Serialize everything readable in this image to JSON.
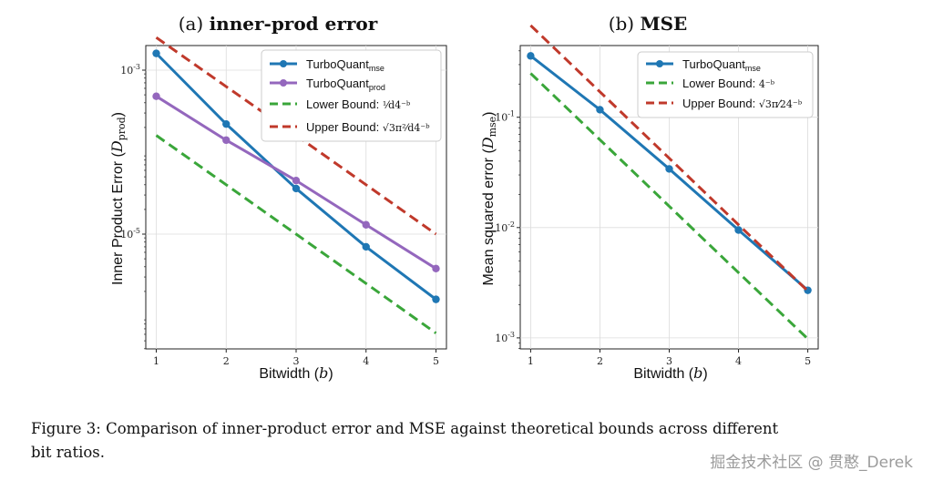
{
  "colors": {
    "blue": "#1f77b4",
    "purple": "#9467bd",
    "green": "#3aa63a",
    "red": "#c0392b"
  },
  "chart_data": [
    {
      "type": "line",
      "title_prefix": "(a) ",
      "title_bold": "inner-prod error",
      "xlabel": "Bitwidth (b)",
      "ylabel": "Inner Product Error (D_prod)",
      "x": [
        1,
        2,
        3,
        4,
        5
      ],
      "xlim": [
        0.85,
        5.15
      ],
      "ylog": true,
      "ylim_log10": [
        -6.4,
        -2.7
      ],
      "yticks": [
        {
          "value": -3,
          "label": "10^-3"
        },
        {
          "value": -5,
          "label": "10^-5"
        }
      ],
      "grid": true,
      "legend_position": "top-right",
      "series": [
        {
          "name": "TurboQuant_mse",
          "style": "solid",
          "color_key": "blue",
          "markers": true,
          "values": [
            0.0016,
            0.00022,
            3.6e-05,
            7e-06,
            1.6e-06
          ]
        },
        {
          "name": "TurboQuant_prod",
          "style": "solid",
          "color_key": "purple",
          "markers": true,
          "values": [
            0.00048,
            0.00014,
            4.5e-05,
            1.3e-05,
            3.8e-06
          ]
        },
        {
          "name": "Lower Bound: (1/d)4^-b",
          "style": "dashed",
          "color_key": "green",
          "markers": false,
          "values": [
            0.00016,
            4e-05,
            1e-05,
            2.5e-06,
            6.2e-07
          ]
        },
        {
          "name": "Upper Bound: √3(π²/d)4^-b",
          "style": "dashed",
          "color_key": "red",
          "markers": false,
          "values": [
            0.0025,
            0.00063,
            0.00016,
            4e-05,
            1e-05
          ]
        }
      ],
      "legend": [
        {
          "text": "TurboQuant",
          "sub": "mse"
        },
        {
          "text": "TurboQuant",
          "sub": "prod"
        },
        {
          "text": "Lower Bound: ",
          "math": "¹⁄d4⁻ᵇ"
        },
        {
          "text": "Upper Bound: ",
          "math": "√3π²⁄d4⁻ᵇ"
        }
      ]
    },
    {
      "type": "line",
      "title_prefix": "(b) ",
      "title_bold": "MSE",
      "xlabel": "Bitwidth (b)",
      "ylabel": "Mean squared error (D_mse)",
      "x": [
        1,
        2,
        3,
        4,
        5
      ],
      "xlim": [
        0.85,
        5.15
      ],
      "ylog": true,
      "ylim_log10": [
        -3.1,
        -0.35
      ],
      "yticks": [
        {
          "value": -1,
          "label": "10^-1"
        },
        {
          "value": -2,
          "label": "10^-2"
        },
        {
          "value": -3,
          "label": "10^-3"
        }
      ],
      "grid": true,
      "legend_position": "top-right",
      "series": [
        {
          "name": "TurboQuant_mse",
          "style": "solid",
          "color_key": "blue",
          "markers": true,
          "values": [
            0.36,
            0.117,
            0.034,
            0.0095,
            0.0027
          ]
        },
        {
          "name": "Lower Bound: 4^-b",
          "style": "dashed",
          "color_key": "green",
          "markers": false,
          "values": [
            0.25,
            0.0625,
            0.0156,
            0.0039,
            0.00098
          ]
        },
        {
          "name": "Upper Bound: √3(π/2)4^-b",
          "style": "dashed",
          "color_key": "red",
          "markers": false,
          "values": [
            0.68,
            0.17,
            0.0425,
            0.0106,
            0.00266
          ]
        }
      ],
      "legend": [
        {
          "text": "TurboQuant",
          "sub": "mse"
        },
        {
          "text": "Lower Bound: ",
          "math": "4⁻ᵇ"
        },
        {
          "text": "Upper Bound: ",
          "math": "√3π⁄24⁻ᵇ"
        }
      ]
    }
  ],
  "caption": {
    "line1": "Figure 3: Comparison of inner-product error and MSE against theoretical bounds across different",
    "line2": "bit ratios."
  },
  "watermark": "掘金技术社区 @ 贯憨_Derek"
}
